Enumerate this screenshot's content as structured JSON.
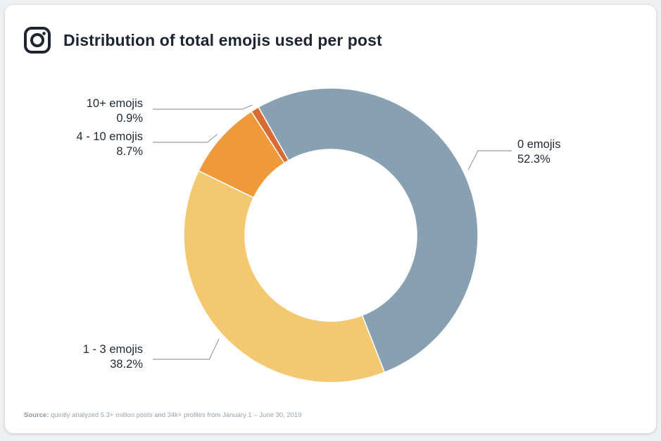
{
  "header": {
    "icon": "instagram-icon",
    "title": "Distribution of total emojis used per post"
  },
  "chart_data": {
    "type": "pie",
    "variant": "donut",
    "title": "Distribution of total emojis used per post",
    "unit": "%",
    "slices": [
      {
        "label": "0 emojis",
        "value": 52.3,
        "value_label": "52.3%",
        "color": "#87a1b2"
      },
      {
        "label": "1 - 3 emojis",
        "value": 38.2,
        "value_label": "38.2%",
        "color": "#f4c870"
      },
      {
        "label": "4 - 10 emojis",
        "value": 8.7,
        "value_label": "8.7%",
        "color": "#ef9a3a"
      },
      {
        "label": "10+ emojis",
        "value": 0.9,
        "value_label": "0.9%",
        "color": "#d96a32"
      }
    ],
    "legend": "none"
  },
  "source": {
    "prefix": "Source:",
    "text": " quintly analyzed 5.3+ million posts and 34k+ profiles from January 1 – June 30, 2019"
  }
}
